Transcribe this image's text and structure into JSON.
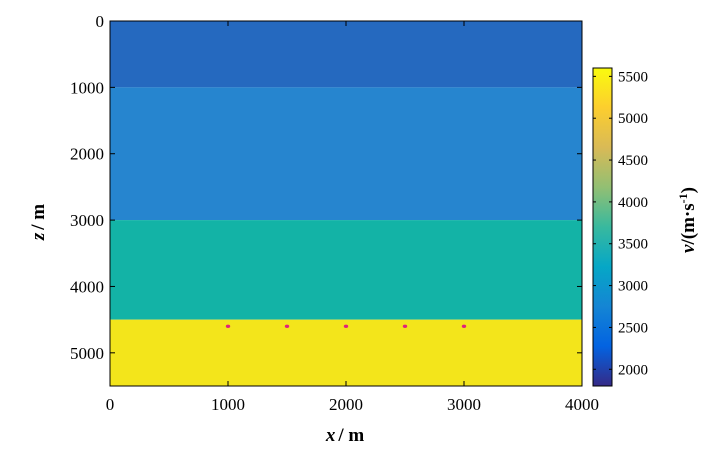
{
  "chart_data": {
    "type": "heatmap",
    "title": "",
    "xlabel": "x / m",
    "xlabel_var": "x",
    "xlabel_unit": "/ m",
    "ylabel": "z / m",
    "ylabel_var": "z",
    "ylabel_unit": "/ m",
    "xlim": [
      0,
      4000
    ],
    "ylim": [
      0,
      5500
    ],
    "y_inverted": true,
    "x_ticks": [
      "0",
      "1000",
      "2000",
      "3000",
      "4000"
    ],
    "y_ticks": [
      "0",
      "1000",
      "2000",
      "3000",
      "4000",
      "5000"
    ],
    "layers": [
      {
        "z_top": 0,
        "z_bottom": 1000,
        "velocity": 2500,
        "color": "#2569bf"
      },
      {
        "z_top": 1000,
        "z_bottom": 3000,
        "velocity": 3000,
        "color": "#2685cf"
      },
      {
        "z_top": 3000,
        "z_bottom": 4500,
        "velocity": 3800,
        "color": "#13b3a6"
      },
      {
        "z_top": 4500,
        "z_bottom": 5500,
        "velocity": 5500,
        "color": "#f3e51b"
      }
    ],
    "markers": {
      "z": 4600,
      "x": [
        1000,
        1500,
        2000,
        2500,
        3000
      ],
      "color": "#e0237a"
    },
    "colorbar": {
      "label_var": "v",
      "label_unit": "/(m·s",
      "label_sup": "-1",
      "label_close": ")",
      "min": 1800,
      "max": 5600,
      "ticks": [
        "2000",
        "2500",
        "3000",
        "3500",
        "4000",
        "4500",
        "5000",
        "5500"
      ],
      "colormap": [
        "#352a87",
        "#0363e1",
        "#1485d4",
        "#06a7c6",
        "#38b99e",
        "#92bf73",
        "#d9ba56",
        "#fcce2e",
        "#f9fb0e"
      ]
    },
    "grid": false,
    "legend": "none"
  }
}
